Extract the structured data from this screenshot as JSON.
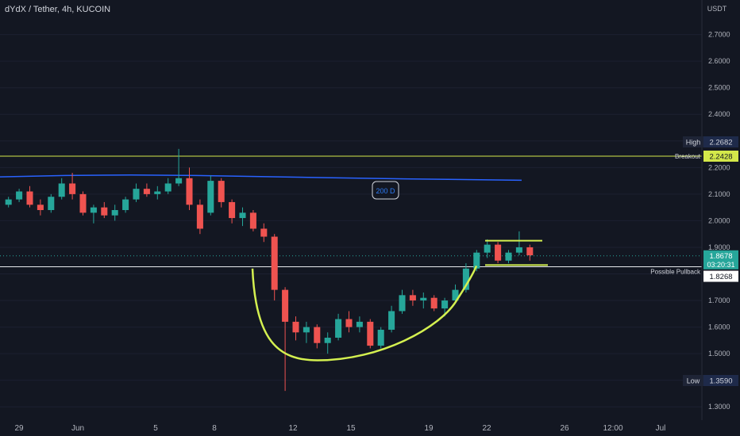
{
  "header": {
    "title": "dYdX / Tether, 4h, KUCOIN"
  },
  "colors": {
    "background": "#131722",
    "up": "#26a69a",
    "down": "#ef5350",
    "ma200": "#2962ff",
    "breakout_line": "#d4e84a",
    "pattern": "#d4f050",
    "pullback_line": "#e8eaed",
    "axis_text": "#b2b5be"
  },
  "chart_data": {
    "type": "candlestick",
    "title": "dYdX / Tether, 4h, KUCOIN",
    "y_unit_label": "USDT",
    "ylim": [
      1.25,
      2.83
    ],
    "y_ticks": [
      "2.7000",
      "2.6000",
      "2.5000",
      "2.4000",
      "2.3000",
      "2.2000",
      "2.1000",
      "2.0000",
      "1.9000",
      "1.8000",
      "1.7000",
      "1.6000",
      "1.5000",
      "1.4000",
      "1.3000"
    ],
    "x_ticks": [
      "29",
      "Jun",
      "5",
      "8",
      "12",
      "15",
      "19",
      "22",
      "26",
      "12:00",
      "Jul"
    ],
    "price_labels": {
      "high": {
        "label": "High",
        "value": "2.2682"
      },
      "breakout": {
        "label": "Breakout",
        "value": "2.2428"
      },
      "current": {
        "value": "1.8678",
        "countdown": "03:20:31"
      },
      "pullback": {
        "label": "Possible Pullback",
        "value": "1.8268"
      },
      "low": {
        "label": "Low",
        "value": "1.3590"
      }
    },
    "annotations": {
      "ma": "200 D"
    },
    "levels": {
      "breakout": 2.2428,
      "pullback": 1.8268,
      "current": 1.8678,
      "range_top": 1.925,
      "range_bottom": 1.833
    },
    "ma200": [
      2.165,
      2.17,
      2.172,
      2.17,
      2.166,
      2.162,
      2.158,
      2.155,
      2.152
    ],
    "candles": [
      [
        2.06,
        2.09,
        2.05,
        2.08
      ],
      [
        2.08,
        2.12,
        2.07,
        2.11
      ],
      [
        2.11,
        2.13,
        2.05,
        2.06
      ],
      [
        2.06,
        2.08,
        2.02,
        2.04
      ],
      [
        2.04,
        2.1,
        2.03,
        2.09
      ],
      [
        2.09,
        2.16,
        2.08,
        2.14
      ],
      [
        2.14,
        2.18,
        2.08,
        2.1
      ],
      [
        2.1,
        2.11,
        2.02,
        2.03
      ],
      [
        2.03,
        2.06,
        1.99,
        2.05
      ],
      [
        2.05,
        2.07,
        2.01,
        2.02
      ],
      [
        2.02,
        2.06,
        2.0,
        2.04
      ],
      [
        2.04,
        2.09,
        2.03,
        2.08
      ],
      [
        2.08,
        2.14,
        2.07,
        2.12
      ],
      [
        2.12,
        2.14,
        2.09,
        2.1
      ],
      [
        2.1,
        2.13,
        2.08,
        2.11
      ],
      [
        2.11,
        2.16,
        2.1,
        2.14
      ],
      [
        2.14,
        2.27,
        2.13,
        2.16
      ],
      [
        2.16,
        2.2,
        2.04,
        2.06
      ],
      [
        2.06,
        2.08,
        1.95,
        1.97
      ],
      [
        2.03,
        2.17,
        2.02,
        2.15
      ],
      [
        2.15,
        2.16,
        2.05,
        2.07
      ],
      [
        2.07,
        2.08,
        1.99,
        2.01
      ],
      [
        2.01,
        2.05,
        1.98,
        2.03
      ],
      [
        2.03,
        2.04,
        1.96,
        1.97
      ],
      [
        1.97,
        1.99,
        1.92,
        1.94
      ],
      [
        1.94,
        1.95,
        1.7,
        1.74
      ],
      [
        1.74,
        1.75,
        1.36,
        1.62
      ],
      [
        1.62,
        1.64,
        1.55,
        1.58
      ],
      [
        1.58,
        1.62,
        1.54,
        1.6
      ],
      [
        1.6,
        1.61,
        1.52,
        1.54
      ],
      [
        1.54,
        1.58,
        1.5,
        1.56
      ],
      [
        1.56,
        1.65,
        1.55,
        1.63
      ],
      [
        1.63,
        1.66,
        1.58,
        1.6
      ],
      [
        1.6,
        1.64,
        1.58,
        1.62
      ],
      [
        1.62,
        1.63,
        1.52,
        1.53
      ],
      [
        1.53,
        1.6,
        1.52,
        1.59
      ],
      [
        1.59,
        1.68,
        1.58,
        1.66
      ],
      [
        1.66,
        1.74,
        1.65,
        1.72
      ],
      [
        1.72,
        1.74,
        1.68,
        1.7
      ],
      [
        1.7,
        1.73,
        1.67,
        1.71
      ],
      [
        1.71,
        1.72,
        1.66,
        1.67
      ],
      [
        1.67,
        1.71,
        1.64,
        1.7
      ],
      [
        1.7,
        1.76,
        1.69,
        1.74
      ],
      [
        1.74,
        1.84,
        1.73,
        1.82
      ],
      [
        1.82,
        1.89,
        1.81,
        1.88
      ],
      [
        1.88,
        1.93,
        1.86,
        1.91
      ],
      [
        1.91,
        1.92,
        1.84,
        1.85
      ],
      [
        1.85,
        1.89,
        1.84,
        1.88
      ],
      [
        1.88,
        1.96,
        1.87,
        1.9
      ],
      [
        1.9,
        1.91,
        1.85,
        1.87
      ]
    ]
  }
}
